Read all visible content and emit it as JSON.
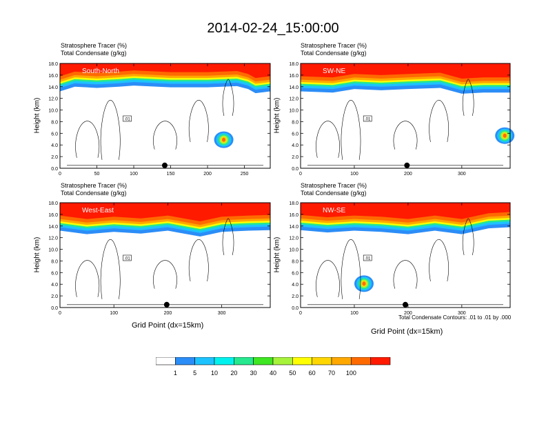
{
  "title": "2014-02-24_15:00:00",
  "panel_subtitle_line1": "Stratosphere Tracer   (%)",
  "panel_subtitle_line2": "Total Condensate   (g/kg)",
  "y_axis_label": "Height (km)",
  "x_axis_label": "Grid Point (dx=15km)",
  "contour_note": "Total Condensate Contours: .01 to .01 by .000",
  "contour_label": ".01",
  "colors": {
    "levels": [
      "#ffffff",
      "#2b8df7",
      "#1cc3ff",
      "#00f2ee",
      "#26e88e",
      "#3fe622",
      "#a7f23b",
      "#ffff00",
      "#ffd700",
      "#ffa800",
      "#ff6a00",
      "#ff1a00"
    ],
    "band_red": "#ff1a00",
    "band_orange": "#ff6a00"
  },
  "chart_data": [
    {
      "type": "heatmap",
      "label": "South-North",
      "xlim": [
        0,
        285
      ],
      "ylim": [
        0,
        18
      ],
      "xticks": [
        0,
        50,
        100,
        150,
        200,
        250
      ],
      "yticks": [
        "0.0",
        "2.0",
        "4.0",
        "6.0",
        "8.0",
        "10.0",
        "12.0",
        "14.0",
        "16.0",
        "18.0"
      ],
      "tropopause_km": [
        [
          0,
          14.8
        ],
        [
          20,
          15.6
        ],
        [
          50,
          15.4
        ],
        [
          80,
          15.6
        ],
        [
          100,
          15.8
        ],
        [
          150,
          15.5
        ],
        [
          200,
          15.5
        ],
        [
          240,
          15.7
        ],
        [
          255,
          15.2
        ],
        [
          265,
          14.5
        ],
        [
          285,
          14.8
        ]
      ],
      "blobs": [
        {
          "x": 222,
          "y": 4.9,
          "peak": "40-50"
        }
      ],
      "marker_x": 142
    },
    {
      "type": "heatmap",
      "label": "SW-NE",
      "xlim": [
        0,
        390
      ],
      "ylim": [
        0,
        18
      ],
      "xticks": [
        0,
        100,
        200,
        300
      ],
      "yticks": [
        "0.0",
        "2.0",
        "4.0",
        "6.0",
        "8.0",
        "10.0",
        "12.0",
        "14.0",
        "16.0",
        "18.0"
      ],
      "tropopause_km": [
        [
          0,
          14.8
        ],
        [
          60,
          14.6
        ],
        [
          100,
          15.2
        ],
        [
          150,
          15.0
        ],
        [
          200,
          15.2
        ],
        [
          260,
          15.4
        ],
        [
          300,
          14.4
        ],
        [
          340,
          14.6
        ],
        [
          390,
          14.6
        ]
      ],
      "blobs": [
        {
          "x": 380,
          "y": 5.6,
          "peak": "60-70"
        }
      ],
      "marker_x": 198
    },
    {
      "type": "heatmap",
      "label": "West-East",
      "xlim": [
        0,
        390
      ],
      "ylim": [
        0,
        18
      ],
      "xticks": [
        0,
        100,
        200,
        300
      ],
      "yticks": [
        "0.0",
        "2.0",
        "4.0",
        "6.0",
        "8.0",
        "10.0",
        "12.0",
        "14.0",
        "16.0",
        "18.0"
      ],
      "tropopause_km": [
        [
          0,
          14.8
        ],
        [
          50,
          14.2
        ],
        [
          100,
          14.6
        ],
        [
          150,
          14.3
        ],
        [
          200,
          14.8
        ],
        [
          260,
          13.8
        ],
        [
          300,
          14.6
        ],
        [
          350,
          14.8
        ],
        [
          390,
          14.9
        ]
      ],
      "blobs": [],
      "marker_x": 198
    },
    {
      "type": "heatmap",
      "label": "NW-SE",
      "xlim": [
        0,
        390
      ],
      "ylim": [
        0,
        18
      ],
      "xticks": [
        0,
        100,
        200,
        300
      ],
      "yticks": [
        "0.0",
        "2.0",
        "4.0",
        "6.0",
        "8.0",
        "10.0",
        "12.0",
        "14.0",
        "16.0",
        "18.0"
      ],
      "tropopause_km": [
        [
          0,
          14.9
        ],
        [
          50,
          14.5
        ],
        [
          100,
          14.8
        ],
        [
          150,
          14.6
        ],
        [
          200,
          14.2
        ],
        [
          250,
          14.8
        ],
        [
          300,
          14.2
        ],
        [
          350,
          15.2
        ],
        [
          390,
          15.4
        ]
      ],
      "blobs": [
        {
          "x": 118,
          "y": 4.1,
          "peak": "40-50"
        }
      ],
      "marker_x": 195
    }
  ],
  "colorbar": {
    "ticks": [
      "1",
      "5",
      "10",
      "20",
      "30",
      "40",
      "50",
      "60",
      "70",
      "100"
    ]
  }
}
